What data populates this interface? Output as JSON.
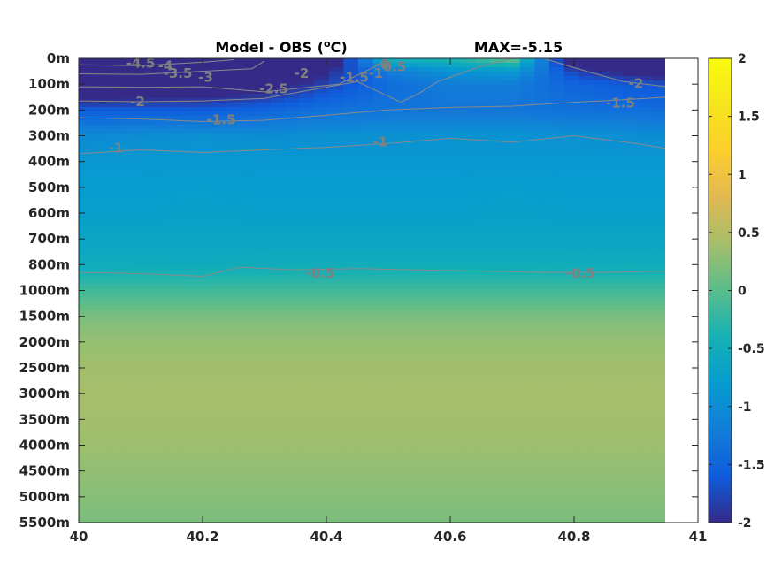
{
  "chart_data": {
    "type": "heatmap",
    "title_prefix": "Model - OBS (",
    "title_degree": "o",
    "title_unit": "C)",
    "max_label": "MAX=-5.15",
    "x_ticks": [
      "40",
      "40.2",
      "40.4",
      "40.6",
      "40.8",
      "41"
    ],
    "x_tick_values": [
      40,
      40.2,
      40.4,
      40.6,
      40.8,
      41
    ],
    "xlim": [
      40,
      41
    ],
    "data_xlim": [
      40,
      40.95
    ],
    "y_ticks": [
      "0m",
      "100m",
      "200m",
      "300m",
      "400m",
      "500m",
      "600m",
      "700m",
      "800m",
      "1000m",
      "1500m",
      "2000m",
      "2500m",
      "3000m",
      "3500m",
      "4000m",
      "4500m",
      "5000m",
      "5500m"
    ],
    "colorbar": {
      "ticks": [
        "2",
        "1.5",
        "1",
        "0.5",
        "0",
        "-0.5",
        "-1",
        "-1.5",
        "-2"
      ],
      "tick_values": [
        2,
        1.5,
        1,
        0.5,
        0,
        -0.5,
        -1,
        -1.5,
        -2
      ],
      "range": [
        -2,
        2
      ],
      "colormap": "parula"
    },
    "field": {
      "x": [
        40,
        40.1,
        40.2,
        40.3,
        40.4,
        40.5,
        40.6,
        40.7,
        40.8,
        40.95
      ],
      "depth_index": [
        0,
        0.5,
        1,
        2,
        3,
        4,
        5,
        6,
        7,
        8,
        9,
        10,
        11,
        12,
        13,
        14,
        15,
        16,
        17,
        18
      ],
      "values": [
        [
          -4.8,
          -4.6,
          -4.0,
          -3.2,
          -2.5,
          -0.4,
          -0.3,
          0.1,
          -2.5,
          -3.0
        ],
        [
          -3.8,
          -3.6,
          -3.3,
          -2.8,
          -2.0,
          -1.2,
          -0.9,
          -0.8,
          -1.8,
          -2.3
        ],
        [
          -2.6,
          -2.5,
          -2.4,
          -2.2,
          -1.8,
          -1.4,
          -1.2,
          -1.2,
          -1.5,
          -1.7
        ],
        [
          -1.6,
          -1.6,
          -1.6,
          -1.5,
          -1.35,
          -1.3,
          -1.3,
          -1.3,
          -1.35,
          -1.4
        ],
        [
          -1.05,
          -1.0,
          -0.95,
          -1.0,
          -0.95,
          -0.95,
          -0.92,
          -0.92,
          -0.95,
          -1.0
        ],
        [
          -0.85,
          -0.85,
          -0.85,
          -0.85,
          -0.85,
          -0.85,
          -0.85,
          -0.85,
          -0.85,
          -0.85
        ],
        [
          -0.8,
          -0.8,
          -0.78,
          -0.8,
          -0.8,
          -0.8,
          -0.8,
          -0.78,
          -0.8,
          -0.8
        ],
        [
          -0.75,
          -0.75,
          -0.72,
          -0.75,
          -0.75,
          -0.75,
          -0.75,
          -0.72,
          -0.75,
          -0.75
        ],
        [
          -0.65,
          -0.65,
          -0.65,
          -0.65,
          -0.65,
          -0.65,
          -0.65,
          -0.65,
          -0.65,
          -0.65
        ],
        [
          -0.52,
          -0.52,
          -0.53,
          -0.5,
          -0.48,
          -0.48,
          -0.48,
          -0.48,
          -0.5,
          -0.5
        ],
        [
          -0.15,
          -0.15,
          -0.15,
          -0.15,
          -0.15,
          -0.15,
          -0.15,
          -0.15,
          -0.15,
          -0.15
        ],
        [
          0.18,
          0.18,
          0.18,
          0.18,
          0.18,
          0.18,
          0.18,
          0.18,
          0.18,
          0.18
        ],
        [
          0.32,
          0.32,
          0.32,
          0.32,
          0.32,
          0.32,
          0.32,
          0.32,
          0.32,
          0.32
        ],
        [
          0.38,
          0.38,
          0.38,
          0.38,
          0.38,
          0.38,
          0.38,
          0.38,
          0.38,
          0.38
        ],
        [
          0.4,
          0.4,
          0.4,
          0.4,
          0.4,
          0.4,
          0.4,
          0.4,
          0.4,
          0.4
        ],
        [
          0.39,
          0.39,
          0.39,
          0.39,
          0.39,
          0.39,
          0.39,
          0.39,
          0.39,
          0.39
        ],
        [
          0.36,
          0.36,
          0.36,
          0.36,
          0.36,
          0.36,
          0.36,
          0.36,
          0.36,
          0.36
        ],
        [
          0.3,
          0.3,
          0.3,
          0.3,
          0.3,
          0.3,
          0.3,
          0.3,
          0.3,
          0.3
        ],
        [
          0.24,
          0.24,
          0.24,
          0.24,
          0.24,
          0.24,
          0.24,
          0.24,
          0.24,
          0.24
        ],
        [
          0.18,
          0.18,
          0.18,
          0.18,
          0.18,
          0.18,
          0.18,
          0.18,
          0.18,
          0.18
        ]
      ]
    },
    "contour_labels": [
      {
        "text": "-4.5",
        "x": 40.1,
        "depth_index": 0.2
      },
      {
        "text": "-4",
        "x": 40.14,
        "depth_index": 0.3
      },
      {
        "text": "-3.5",
        "x": 40.16,
        "depth_index": 0.6
      },
      {
        "text": "-3",
        "x": 40.205,
        "depth_index": 0.75
      },
      {
        "text": "-2.5",
        "x": 40.315,
        "depth_index": 1.2
      },
      {
        "text": "-2",
        "x": 40.36,
        "depth_index": 0.6
      },
      {
        "text": "-1.5",
        "x": 40.445,
        "depth_index": 0.75
      },
      {
        "text": "-1",
        "x": 40.48,
        "depth_index": 0.6
      },
      {
        "text": "0.5",
        "x": 40.51,
        "depth_index": 0.35
      },
      {
        "text": "-0",
        "x": 40.49,
        "depth_index": 0.25
      },
      {
        "text": "-2",
        "x": 40.095,
        "depth_index": 1.7
      },
      {
        "text": "-1.5",
        "x": 40.23,
        "depth_index": 2.4
      },
      {
        "text": "-1",
        "x": 40.06,
        "depth_index": 3.5
      },
      {
        "text": "-1",
        "x": 40.487,
        "depth_index": 3.25
      },
      {
        "text": "-2",
        "x": 40.9,
        "depth_index": 1.0
      },
      {
        "text": "-1.5",
        "x": 40.875,
        "depth_index": 1.75
      },
      {
        "text": "-0.5",
        "x": 40.39,
        "depth_index": 8.35
      },
      {
        "text": "-0.5",
        "x": 40.81,
        "depth_index": 8.35
      }
    ],
    "contour_lines": [
      {
        "points": [
          [
            40.0,
            0.25
          ],
          [
            40.1,
            0.28
          ],
          [
            40.2,
            0.15
          ],
          [
            40.25,
            0.05
          ]
        ]
      },
      {
        "points": [
          [
            40.0,
            0.6
          ],
          [
            40.1,
            0.62
          ],
          [
            40.2,
            0.5
          ],
          [
            40.28,
            0.4
          ],
          [
            40.3,
            0.1
          ]
        ]
      },
      {
        "points": [
          [
            40.0,
            1.1
          ],
          [
            40.1,
            1.12
          ],
          [
            40.2,
            1.1
          ],
          [
            40.3,
            1.3
          ],
          [
            40.42,
            1.0
          ],
          [
            40.48,
            0.3
          ],
          [
            40.5,
            0
          ]
        ]
      },
      {
        "points": [
          [
            40.0,
            1.65
          ],
          [
            40.1,
            1.68
          ],
          [
            40.2,
            1.65
          ],
          [
            40.3,
            1.55
          ],
          [
            40.38,
            1.2
          ],
          [
            40.45,
            0.9
          ],
          [
            40.52,
            1.7
          ],
          [
            40.55,
            1.35
          ],
          [
            40.58,
            0.9
          ],
          [
            40.65,
            0.3
          ],
          [
            40.7,
            0
          ]
        ]
      },
      {
        "points": [
          [
            40.0,
            2.3
          ],
          [
            40.1,
            2.35
          ],
          [
            40.2,
            2.45
          ],
          [
            40.3,
            2.4
          ],
          [
            40.4,
            2.2
          ],
          [
            40.5,
            2.0
          ],
          [
            40.6,
            1.9
          ],
          [
            40.7,
            1.85
          ],
          [
            40.8,
            1.7
          ],
          [
            40.88,
            1.6
          ],
          [
            40.95,
            1.5
          ]
        ]
      },
      {
        "points": [
          [
            40.75,
            0
          ],
          [
            40.82,
            0.5
          ],
          [
            40.88,
            0.9
          ],
          [
            40.95,
            1.1
          ]
        ]
      },
      {
        "points": [
          [
            40.0,
            3.7
          ],
          [
            40.1,
            3.55
          ],
          [
            40.2,
            3.65
          ],
          [
            40.3,
            3.55
          ],
          [
            40.4,
            3.45
          ],
          [
            40.5,
            3.3
          ],
          [
            40.6,
            3.1
          ],
          [
            40.7,
            3.25
          ],
          [
            40.8,
            3.0
          ],
          [
            40.9,
            3.3
          ],
          [
            40.95,
            3.5
          ]
        ]
      },
      {
        "points": [
          [
            40.0,
            8.3
          ],
          [
            40.1,
            8.35
          ],
          [
            40.2,
            8.45
          ],
          [
            40.26,
            8.1
          ],
          [
            40.35,
            8.2
          ],
          [
            40.45,
            8.15
          ],
          [
            40.55,
            8.2
          ],
          [
            40.65,
            8.25
          ],
          [
            40.75,
            8.3
          ],
          [
            40.85,
            8.3
          ],
          [
            40.95,
            8.25
          ]
        ]
      }
    ]
  }
}
